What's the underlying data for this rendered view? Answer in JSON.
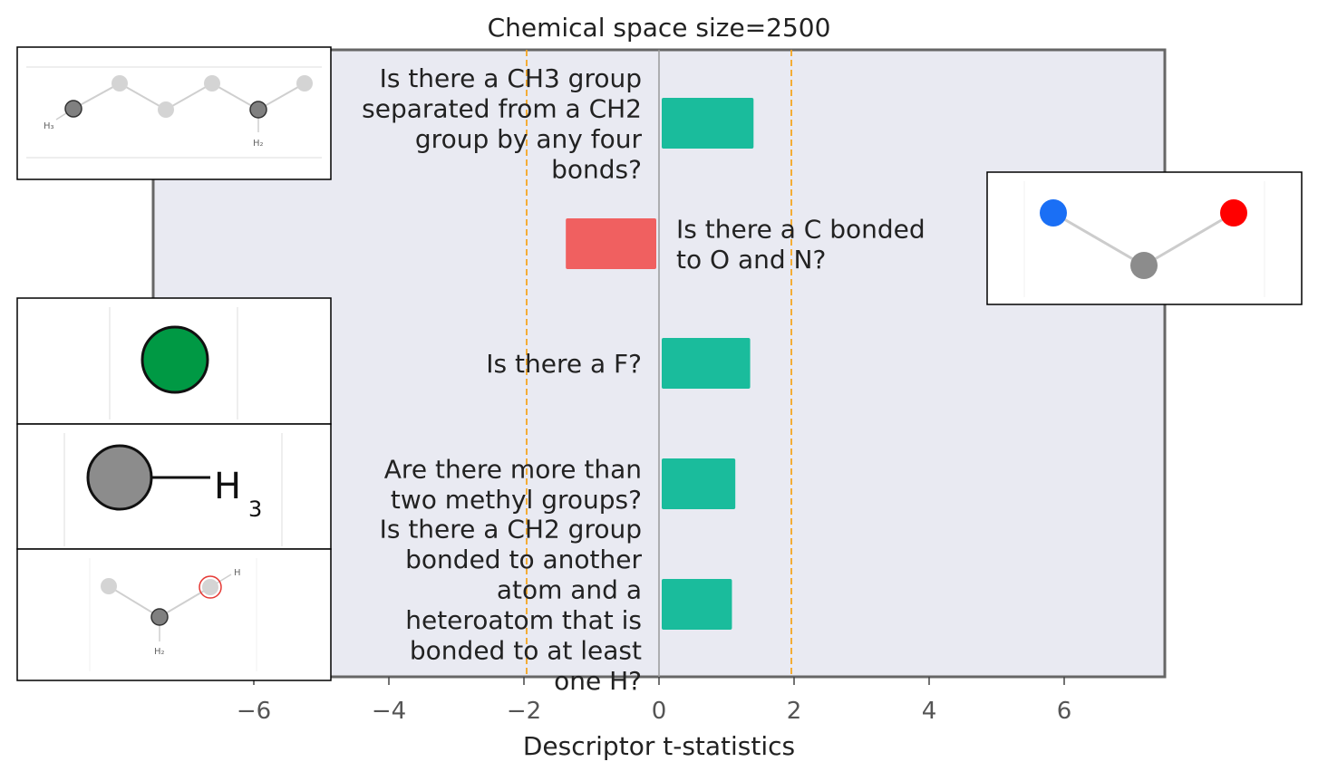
{
  "chart_data": {
    "type": "bar",
    "orientation": "horizontal",
    "title": "Chemical space size=2500",
    "xlabel": "Descriptor t-statistics",
    "ylabel": "",
    "xlim": [
      -7.5,
      7.5
    ],
    "xticks": [
      -6,
      -4,
      -2,
      0,
      2,
      4,
      6
    ],
    "xtick_labels": [
      "−6",
      "−4",
      "−2",
      "0",
      "2",
      "4",
      "6"
    ],
    "significance_lines": [
      -1.96,
      1.96
    ],
    "grid": false,
    "categories": [
      {
        "lines": [
          "Is there a CH3 group",
          "separated from a CH2",
          "group by any four",
          "bonds?"
        ],
        "value": 1.4,
        "color": "#1abc9c"
      },
      {
        "lines": [
          "Is there a C bonded",
          "to O and N?"
        ],
        "value": -1.38,
        "color": "#f06060"
      },
      {
        "lines": [
          "Is there a F?"
        ],
        "value": 1.35,
        "color": "#1abc9c"
      },
      {
        "lines": [
          "Are there more than",
          "two methyl groups?"
        ],
        "value": 1.13,
        "color": "#1abc9c"
      },
      {
        "lines": [
          "Is there a CH2 group",
          "bonded to another",
          "atom and a",
          "heteroatom that is",
          "bonded to at least",
          "one H?"
        ],
        "value": 1.08,
        "color": "#1abc9c"
      }
    ],
    "colors": {
      "positive": "#1abc9c",
      "negative": "#f06060",
      "plot_background": "#e9eaf2",
      "threshold": "#f5a623",
      "frame": "#666666"
    },
    "insets": [
      {
        "name": "chain-molecule",
        "subscripts": [
          "H₃",
          "H₂"
        ]
      },
      {
        "name": "c-bonded-o-n-molecule"
      },
      {
        "name": "fluorine-atom"
      },
      {
        "name": "methyl-group",
        "label": "H",
        "subscript": "3"
      },
      {
        "name": "ch2-heteroatom-molecule",
        "subscripts": [
          "H₂",
          "H"
        ]
      }
    ]
  }
}
